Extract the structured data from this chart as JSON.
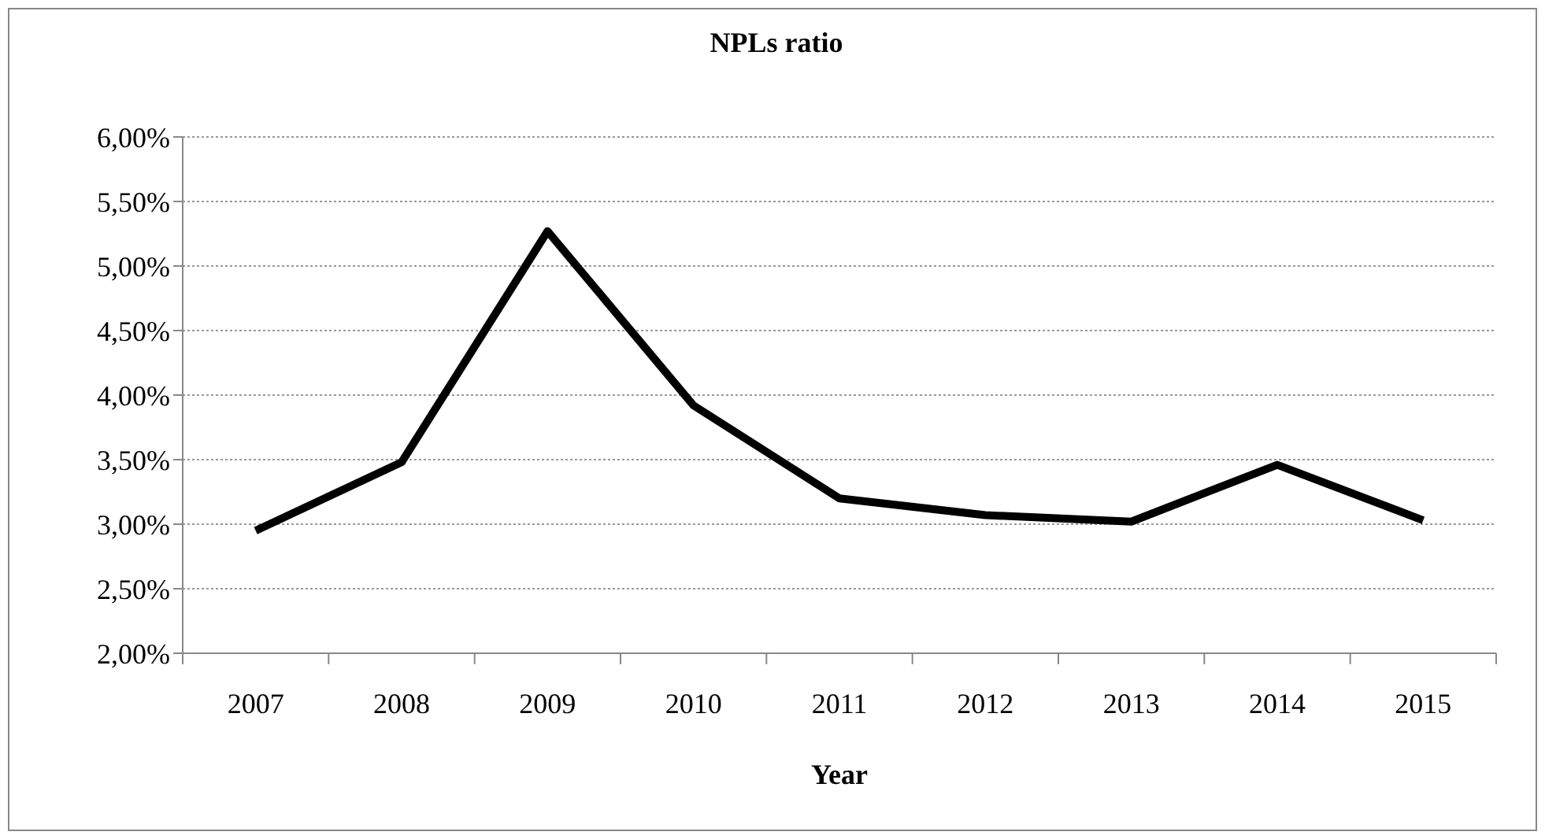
{
  "chart_data": {
    "type": "line",
    "title": "NPLs ratio",
    "xlabel": "Year",
    "categories": [
      "2007",
      "2008",
      "2009",
      "2010",
      "2011",
      "2012",
      "2013",
      "2014",
      "2015"
    ],
    "series": [
      {
        "color": "#000000",
        "values": [
          2.95,
          3.48,
          5.27,
          3.92,
          3.2,
          3.07,
          3.02,
          3.46,
          3.03
        ]
      }
    ],
    "ylim": [
      2,
      6
    ],
    "yticks": [
      {
        "value": 2,
        "label": "2,00%"
      },
      {
        "value": 2.5,
        "label": "2,50%"
      },
      {
        "value": 3,
        "label": "3,00%"
      },
      {
        "value": 3.5,
        "label": "3,50%"
      },
      {
        "value": 4,
        "label": "4,00%"
      },
      {
        "value": 4.5,
        "label": "4,50%"
      },
      {
        "value": 5,
        "label": "5,00%"
      },
      {
        "value": 5.5,
        "label": "5,50%"
      },
      {
        "value": 6,
        "label": "6,00%"
      }
    ],
    "grid": "y",
    "marker": "none",
    "line_style": "solid"
  }
}
